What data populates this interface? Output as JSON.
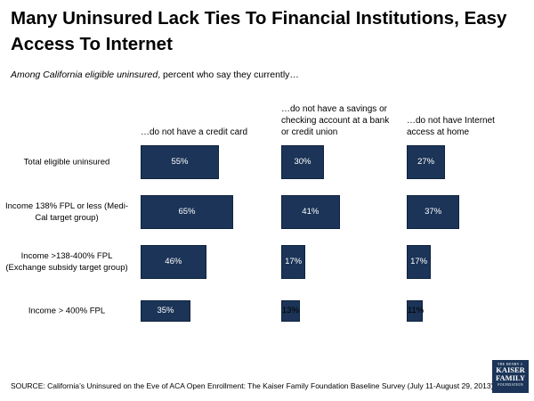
{
  "title": "Many Uninsured Lack Ties To Financial Institutions, Easy Access To Internet",
  "subtitle": {
    "italic": "Among California eligible uninsured",
    "rest": ", percent who say they currently…"
  },
  "colors": {
    "bar": "#1b3457"
  },
  "chart_data": {
    "type": "bar",
    "orientation": "horizontal",
    "categories": [
      "Total eligible uninsured",
      "Income 138% FPL or less (Medi-Cal target group)",
      "Income >138-400% FPL (Exchange subsidy target group)",
      "Income > 400% FPL"
    ],
    "series": [
      {
        "name": "…do not have a credit card",
        "values": [
          55,
          65,
          46,
          35
        ]
      },
      {
        "name": "…do not have a savings or checking account at a bank or credit union",
        "values": [
          30,
          41,
          17,
          13
        ]
      },
      {
        "name": "…do not have Internet access at home",
        "values": [
          27,
          37,
          17,
          11
        ]
      }
    ],
    "value_suffix": "%",
    "xlim": [
      0,
      100
    ],
    "grid": false
  },
  "source": "SOURCE: California’s Uninsured on the Eve of ACA Open Enrollment: The Kaiser Family Foundation Baseline Survey (July 11-August 29, 2013)",
  "logo": {
    "line1": "THE HENRY J.",
    "line2": "KAISER FAMILY",
    "line3": "FOUNDATION"
  }
}
